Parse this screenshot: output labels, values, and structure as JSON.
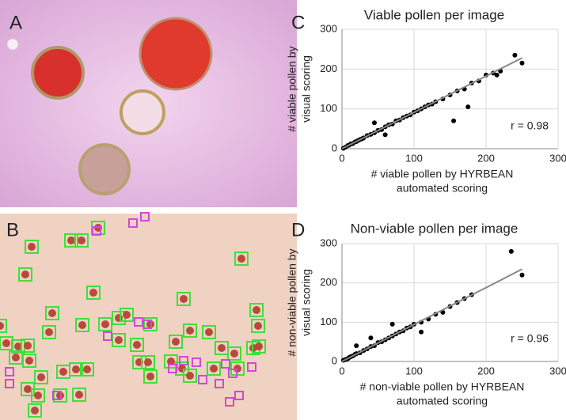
{
  "panel_labels": [
    "A",
    "B"
  ],
  "chart_data": [
    {
      "type": "scatter",
      "panel": "C",
      "title": "Viable pollen per image",
      "xlabel": [
        "# viable pollen by HYRBEAN",
        "automated scoring"
      ],
      "ylabel": [
        "# viable pollen by",
        "visual scoring"
      ],
      "annotation": "r = 0.98",
      "xlim": [
        0,
        300
      ],
      "ylim": [
        0,
        300
      ],
      "xticks": [
        0,
        100,
        200,
        300
      ],
      "yticks": [
        0,
        100,
        200,
        300
      ],
      "grid": true,
      "color": "#000000",
      "x": [
        2,
        5,
        8,
        10,
        12,
        15,
        18,
        20,
        22,
        25,
        28,
        30,
        35,
        40,
        45,
        50,
        55,
        60,
        65,
        70,
        75,
        80,
        85,
        90,
        95,
        100,
        105,
        110,
        115,
        120,
        125,
        130,
        140,
        150,
        160,
        170,
        180,
        190,
        200,
        210,
        220,
        240,
        250,
        45,
        60,
        155,
        175,
        215
      ],
      "y": [
        1,
        4,
        8,
        9,
        12,
        13,
        17,
        18,
        20,
        23,
        25,
        27,
        33,
        36,
        40,
        46,
        48,
        55,
        60,
        62,
        70,
        72,
        78,
        82,
        85,
        92,
        95,
        100,
        105,
        110,
        112,
        118,
        125,
        135,
        145,
        150,
        165,
        170,
        185,
        190,
        195,
        235,
        215,
        65,
        35,
        70,
        105,
        185
      ],
      "trendline": {
        "color": "#888888",
        "x": [
          0,
          250
        ],
        "y": [
          0,
          228
        ]
      }
    },
    {
      "type": "scatter",
      "panel": "D",
      "title": "Non-viable pollen per image",
      "xlabel": [
        "# non-viable pollen by HYRBEAN",
        "automated scoring"
      ],
      "ylabel": [
        "# non-viable pollen by",
        "visual scoring"
      ],
      "annotation": "r = 0.96",
      "xlim": [
        0,
        300
      ],
      "ylim": [
        0,
        300
      ],
      "xticks": [
        0,
        100,
        200,
        300
      ],
      "yticks": [
        0,
        100,
        200,
        300
      ],
      "grid": true,
      "color": "#000000",
      "x": [
        2,
        5,
        8,
        10,
        12,
        15,
        18,
        20,
        25,
        30,
        35,
        40,
        45,
        50,
        55,
        60,
        65,
        70,
        75,
        80,
        85,
        90,
        95,
        100,
        110,
        120,
        130,
        140,
        150,
        160,
        170,
        180,
        235,
        250,
        20,
        40,
        70,
        110
      ],
      "y": [
        3,
        5,
        7,
        10,
        12,
        14,
        18,
        20,
        22,
        28,
        32,
        38,
        40,
        48,
        50,
        55,
        60,
        65,
        70,
        75,
        78,
        85,
        88,
        95,
        100,
        108,
        120,
        125,
        140,
        150,
        160,
        170,
        280,
        220,
        40,
        60,
        95,
        75
      ],
      "trendline": {
        "color": "#888888",
        "x": [
          0,
          250
        ],
        "y": [
          0,
          235
        ]
      }
    }
  ]
}
